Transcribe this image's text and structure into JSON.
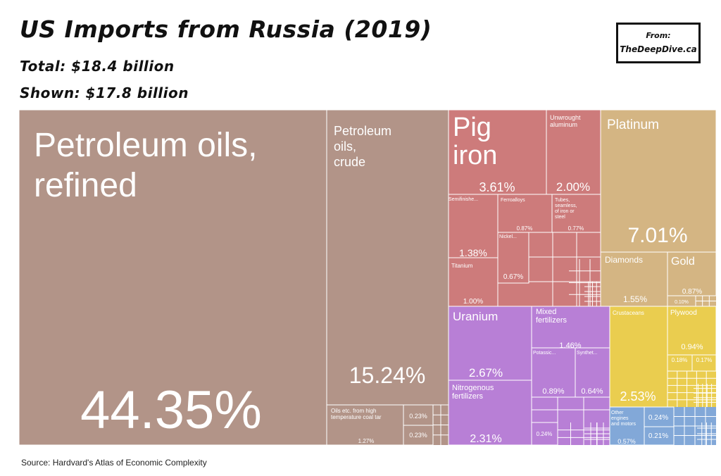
{
  "header": {
    "title": "US Imports from Russia (2019)",
    "total": "Total: $18.4 billion",
    "shown": "Shown: $17.8 billion"
  },
  "badge": {
    "from": "From:",
    "site": "TheDeepDive.ca"
  },
  "source": "Source: Hardvard's Atlas of Economic Complexity",
  "colors": {
    "mineral": "#b29488",
    "metals": "#cd7b7b",
    "precious": "#d4b583",
    "chemicals": "#b87fd6",
    "food": "#eacd4f",
    "machinery": "#82a8d8",
    "border": "#ffffff"
  },
  "chart_data": {
    "type": "treemap",
    "unit": "% of total",
    "items": [
      {
        "name": "Petroleum oils, refined",
        "value": 44.35,
        "value_label": "44.35%",
        "group": "mineral"
      },
      {
        "name": "Petroleum oils, crude",
        "value": 15.24,
        "value_label": "15.24%",
        "group": "mineral"
      },
      {
        "name": "Oils etc. from high temperature coal tar",
        "value": 1.27,
        "value_label": "1.27%",
        "group": "mineral"
      },
      {
        "name": "",
        "value": 0.23,
        "value_label": "0.23%",
        "group": "mineral"
      },
      {
        "name": "",
        "value": 0.23,
        "value_label": "0.23%",
        "group": "mineral"
      },
      {
        "name": "Pig iron",
        "value": 3.61,
        "value_label": "3.61%",
        "group": "metals"
      },
      {
        "name": "Unwrought aluminum",
        "value": 2.0,
        "value_label": "2.00%",
        "group": "metals"
      },
      {
        "name": "Semifinishe...",
        "value": 1.38,
        "value_label": "1.38%",
        "group": "metals"
      },
      {
        "name": "Ferroalloys",
        "value": 0.87,
        "value_label": "0.87%",
        "group": "metals"
      },
      {
        "name": "Tubes, seamless, of iron or steel",
        "value": 0.77,
        "value_label": "0.77%",
        "group": "metals"
      },
      {
        "name": "Nickel...",
        "value": 0.67,
        "value_label": "0.67%",
        "group": "metals"
      },
      {
        "name": "Titanium",
        "value": 1.0,
        "value_label": "1.00%",
        "group": "metals"
      },
      {
        "name": "Platinum",
        "value": 7.01,
        "value_label": "7.01%",
        "group": "precious"
      },
      {
        "name": "Diamonds",
        "value": 1.55,
        "value_label": "1.55%",
        "group": "precious"
      },
      {
        "name": "Gold",
        "value": 0.87,
        "value_label": "0.87%",
        "group": "precious"
      },
      {
        "name": "",
        "value": 0.1,
        "value_label": "0.10%",
        "group": "precious"
      },
      {
        "name": "Uranium",
        "value": 2.67,
        "value_label": "2.67%",
        "group": "chemicals"
      },
      {
        "name": "Nitrogenous fertilizers",
        "value": 2.31,
        "value_label": "2.31%",
        "group": "chemicals"
      },
      {
        "name": "Mixed fertilizers",
        "value": 1.46,
        "value_label": "1.46%",
        "group": "chemicals"
      },
      {
        "name": "Potassic...",
        "value": 0.89,
        "value_label": "0.89%",
        "group": "chemicals"
      },
      {
        "name": "Synthet...",
        "value": 0.64,
        "value_label": "0.64%",
        "group": "chemicals"
      },
      {
        "name": "",
        "value": 0.24,
        "value_label": "0.24%",
        "group": "chemicals"
      },
      {
        "name": "Crustaceans",
        "value": 2.53,
        "value_label": "2.53%",
        "group": "food"
      },
      {
        "name": "Plywood",
        "value": 0.94,
        "value_label": "0.94%",
        "group": "food"
      },
      {
        "name": "",
        "value": 0.18,
        "value_label": "0.18%",
        "group": "food"
      },
      {
        "name": "",
        "value": 0.17,
        "value_label": "0.17%",
        "group": "food"
      },
      {
        "name": "Other engines and motors",
        "value": 0.57,
        "value_label": "0.57%",
        "group": "machinery"
      },
      {
        "name": "",
        "value": 0.24,
        "value_label": "0.24%",
        "group": "machinery"
      },
      {
        "name": "",
        "value": 0.21,
        "value_label": "0.21%",
        "group": "machinery"
      }
    ]
  }
}
